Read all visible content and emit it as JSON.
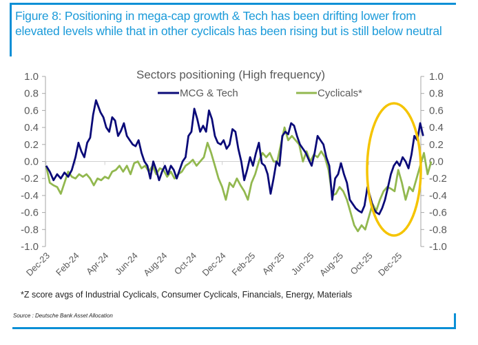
{
  "figure": {
    "title": "Figure 8: Positioning in mega-cap growth & Tech has been drifting lower from elevated levels while that in other cyclicals has been rising but is still below neutral",
    "footnote": "*Z score avgs of Industrial Cyclicals, Consumer Cyclicals, Financials, Energy, Materials",
    "source": "Source : Deutsche Bank Asset Allocation",
    "accent_color": "#0a8fd6",
    "highlight_color": "#f5c400"
  },
  "chart_data": {
    "type": "line",
    "title": "Sectors positioning (High frequency)",
    "xlabel": "",
    "ylabel": "",
    "ylim": [
      -1.0,
      1.0
    ],
    "yticks": [
      "1.0",
      "0.8",
      "0.6",
      "0.4",
      "0.2",
      "0.0",
      "-0.2",
      "-0.4",
      "-0.6",
      "-0.8",
      "-1.0"
    ],
    "ytick_values": [
      1.0,
      0.8,
      0.6,
      0.4,
      0.2,
      0.0,
      -0.2,
      -0.4,
      -0.6,
      -0.8,
      -1.0
    ],
    "secondary_yticks": [
      "1.0",
      "0.8",
      "0.6",
      "0.4",
      "0.2",
      "0.0",
      "-0.2",
      "-0.4",
      "-0.6",
      "-0.8",
      "-1.0"
    ],
    "xticks": [
      "Dec-23",
      "Feb-24",
      "Apr-24",
      "Jun-24",
      "Aug-24",
      "Oct-24",
      "Dec-24",
      "Feb-25",
      "Apr-25",
      "Jun-25",
      "Aug-25",
      "Oct-25",
      "Dec-25"
    ],
    "x_unit": "months since Dec-23",
    "xlim": [
      0,
      26.5
    ],
    "grid": "zero line only",
    "legend_position": "top",
    "annotation": "yellow ellipse highlighting Oct-25 to Dec-25",
    "series": [
      {
        "name": "MCG & Tech",
        "color": "#0a0a78",
        "points": [
          [
            0.0,
            -0.05
          ],
          [
            0.25,
            -0.12
          ],
          [
            0.5,
            -0.22
          ],
          [
            0.75,
            -0.15
          ],
          [
            1.0,
            -0.2
          ],
          [
            1.25,
            -0.13
          ],
          [
            1.5,
            -0.18
          ],
          [
            1.75,
            -0.1
          ],
          [
            2.0,
            0.05
          ],
          [
            2.2,
            0.22
          ],
          [
            2.4,
            0.12
          ],
          [
            2.6,
            0.05
          ],
          [
            2.8,
            0.22
          ],
          [
            3.0,
            0.28
          ],
          [
            3.2,
            0.55
          ],
          [
            3.4,
            0.72
          ],
          [
            3.55,
            0.65
          ],
          [
            3.7,
            0.58
          ],
          [
            3.9,
            0.52
          ],
          [
            4.1,
            0.4
          ],
          [
            4.3,
            0.35
          ],
          [
            4.5,
            0.52
          ],
          [
            4.7,
            0.48
          ],
          [
            4.9,
            0.3
          ],
          [
            5.1,
            0.36
          ],
          [
            5.3,
            0.45
          ],
          [
            5.5,
            0.3
          ],
          [
            5.7,
            0.25
          ],
          [
            5.9,
            0.2
          ],
          [
            6.1,
            0.18
          ],
          [
            6.3,
            0.25
          ],
          [
            6.5,
            0.1
          ],
          [
            6.7,
            0.0
          ],
          [
            6.9,
            -0.05
          ],
          [
            7.1,
            -0.2
          ],
          [
            7.3,
            0.0
          ],
          [
            7.5,
            -0.1
          ],
          [
            7.7,
            -0.22
          ],
          [
            7.9,
            -0.12
          ],
          [
            8.1,
            -0.05
          ],
          [
            8.3,
            -0.15
          ],
          [
            8.5,
            -0.05
          ],
          [
            8.7,
            -0.1
          ],
          [
            8.9,
            -0.2
          ],
          [
            9.1,
            -0.1
          ],
          [
            9.3,
            0.0
          ],
          [
            9.5,
            0.05
          ],
          [
            9.7,
            0.3
          ],
          [
            9.9,
            0.35
          ],
          [
            10.1,
            0.62
          ],
          [
            10.3,
            0.5
          ],
          [
            10.5,
            0.35
          ],
          [
            10.7,
            0.42
          ],
          [
            10.9,
            0.35
          ],
          [
            11.1,
            0.6
          ],
          [
            11.3,
            0.5
          ],
          [
            11.5,
            0.3
          ],
          [
            11.7,
            0.22
          ],
          [
            11.9,
            0.2
          ],
          [
            12.1,
            0.25
          ],
          [
            12.3,
            0.15
          ],
          [
            12.5,
            0.2
          ],
          [
            12.7,
            0.38
          ],
          [
            12.9,
            0.35
          ],
          [
            13.1,
            0.15
          ],
          [
            13.3,
            0.0
          ],
          [
            13.5,
            -0.22
          ],
          [
            13.7,
            -0.1
          ],
          [
            13.9,
            0.05
          ],
          [
            14.1,
            -0.05
          ],
          [
            14.3,
            0.1
          ],
          [
            14.5,
            0.22
          ],
          [
            14.7,
            -0.02
          ],
          [
            14.9,
            -0.05
          ],
          [
            15.1,
            -0.15
          ],
          [
            15.3,
            -0.38
          ],
          [
            15.5,
            -0.2
          ],
          [
            15.7,
            0.0
          ],
          [
            15.9,
            -0.05
          ],
          [
            16.1,
            0.3
          ],
          [
            16.3,
            0.35
          ],
          [
            16.5,
            0.32
          ],
          [
            16.7,
            0.45
          ],
          [
            16.9,
            0.42
          ],
          [
            17.1,
            0.3
          ],
          [
            17.3,
            0.2
          ],
          [
            17.5,
            0.15
          ],
          [
            17.7,
            0.1
          ],
          [
            17.9,
            0.02
          ],
          [
            18.1,
            -0.05
          ],
          [
            18.3,
            0.1
          ],
          [
            18.5,
            0.3
          ],
          [
            18.7,
            0.25
          ],
          [
            18.9,
            0.2
          ],
          [
            19.1,
            0.05
          ],
          [
            19.3,
            -0.05
          ],
          [
            19.5,
            -0.45
          ],
          [
            19.7,
            -0.2
          ],
          [
            19.9,
            -0.15
          ],
          [
            20.1,
            -0.02
          ],
          [
            20.3,
            -0.15
          ],
          [
            20.5,
            -0.25
          ],
          [
            20.7,
            -0.45
          ],
          [
            20.9,
            -0.5
          ],
          [
            21.1,
            -0.55
          ],
          [
            21.3,
            -0.58
          ],
          [
            21.5,
            -0.6
          ],
          [
            21.7,
            -0.52
          ],
          [
            21.9,
            -0.3
          ],
          [
            22.1,
            -0.42
          ],
          [
            22.3,
            -0.55
          ],
          [
            22.5,
            -0.6
          ],
          [
            22.7,
            -0.62
          ],
          [
            22.9,
            -0.55
          ],
          [
            23.1,
            -0.45
          ],
          [
            23.3,
            -0.3
          ],
          [
            23.5,
            -0.15
          ],
          [
            23.7,
            -0.05
          ],
          [
            23.9,
            0.0
          ],
          [
            24.1,
            -0.05
          ],
          [
            24.3,
            0.05
          ],
          [
            24.5,
            0.0
          ],
          [
            24.7,
            -0.08
          ],
          [
            24.9,
            0.08
          ],
          [
            25.1,
            0.3
          ],
          [
            25.3,
            0.25
          ],
          [
            25.5,
            0.45
          ],
          [
            25.7,
            0.3
          ]
        ]
      },
      {
        "name": "Cyclicals*",
        "color": "#92b84f",
        "points": [
          [
            0.0,
            -0.05
          ],
          [
            0.25,
            -0.25
          ],
          [
            0.5,
            -0.28
          ],
          [
            0.75,
            -0.3
          ],
          [
            1.0,
            -0.38
          ],
          [
            1.25,
            -0.25
          ],
          [
            1.5,
            -0.12
          ],
          [
            1.75,
            -0.18
          ],
          [
            2.0,
            -0.2
          ],
          [
            2.25,
            -0.15
          ],
          [
            2.5,
            -0.18
          ],
          [
            2.75,
            -0.15
          ],
          [
            3.0,
            -0.2
          ],
          [
            3.25,
            -0.28
          ],
          [
            3.5,
            -0.2
          ],
          [
            3.75,
            -0.22
          ],
          [
            4.0,
            -0.18
          ],
          [
            4.25,
            -0.2
          ],
          [
            4.5,
            -0.12
          ],
          [
            4.75,
            -0.1
          ],
          [
            5.0,
            -0.05
          ],
          [
            5.25,
            -0.12
          ],
          [
            5.5,
            -0.05
          ],
          [
            5.75,
            -0.15
          ],
          [
            6.0,
            -0.02
          ],
          [
            6.25,
            0.0
          ],
          [
            6.5,
            -0.08
          ],
          [
            6.75,
            -0.05
          ],
          [
            7.0,
            -0.12
          ],
          [
            7.25,
            -0.05
          ],
          [
            7.5,
            -0.15
          ],
          [
            7.75,
            -0.08
          ],
          [
            8.0,
            -0.1
          ],
          [
            8.25,
            -0.18
          ],
          [
            8.5,
            -0.12
          ],
          [
            8.75,
            -0.2
          ],
          [
            9.0,
            -0.15
          ],
          [
            9.25,
            -0.12
          ],
          [
            9.5,
            -0.05
          ],
          [
            9.75,
            -0.02
          ],
          [
            10.0,
            0.02
          ],
          [
            10.25,
            -0.05
          ],
          [
            10.5,
            0.0
          ],
          [
            10.75,
            0.05
          ],
          [
            11.0,
            0.22
          ],
          [
            11.25,
            0.1
          ],
          [
            11.5,
            -0.05
          ],
          [
            11.75,
            -0.2
          ],
          [
            12.0,
            -0.3
          ],
          [
            12.25,
            -0.45
          ],
          [
            12.5,
            -0.25
          ],
          [
            12.75,
            -0.3
          ],
          [
            13.0,
            -0.2
          ],
          [
            13.25,
            -0.28
          ],
          [
            13.5,
            -0.35
          ],
          [
            13.75,
            -0.45
          ],
          [
            14.0,
            -0.25
          ],
          [
            14.25,
            -0.15
          ],
          [
            14.5,
            0.0
          ],
          [
            14.75,
            0.1
          ],
          [
            15.0,
            0.05
          ],
          [
            15.25,
            0.1
          ],
          [
            15.5,
            0.0
          ],
          [
            15.75,
            0.0
          ],
          [
            16.0,
            0.2
          ],
          [
            16.25,
            0.4
          ],
          [
            16.5,
            0.25
          ],
          [
            16.75,
            0.3
          ],
          [
            17.0,
            0.25
          ],
          [
            17.25,
            0.2
          ],
          [
            17.5,
            0.0
          ],
          [
            17.75,
            0.12
          ],
          [
            18.0,
            0.0
          ],
          [
            18.25,
            0.08
          ],
          [
            18.5,
            0.05
          ],
          [
            18.75,
            0.12
          ],
          [
            19.0,
            0.05
          ],
          [
            19.25,
            -0.1
          ],
          [
            19.5,
            -0.4
          ],
          [
            19.75,
            -0.38
          ],
          [
            20.0,
            -0.3
          ],
          [
            20.25,
            -0.35
          ],
          [
            20.5,
            -0.45
          ],
          [
            20.75,
            -0.6
          ],
          [
            21.0,
            -0.75
          ],
          [
            21.25,
            -0.82
          ],
          [
            21.5,
            -0.75
          ],
          [
            21.75,
            -0.8
          ],
          [
            22.0,
            -0.65
          ],
          [
            22.25,
            -0.5
          ],
          [
            22.5,
            -0.58
          ],
          [
            22.75,
            -0.45
          ],
          [
            23.0,
            -0.35
          ],
          [
            23.25,
            -0.3
          ],
          [
            23.5,
            -0.32
          ],
          [
            23.75,
            -0.35
          ],
          [
            24.0,
            -0.1
          ],
          [
            24.25,
            -0.25
          ],
          [
            24.5,
            -0.45
          ],
          [
            24.75,
            -0.3
          ],
          [
            25.0,
            -0.35
          ],
          [
            25.25,
            -0.2
          ],
          [
            25.5,
            -0.05
          ],
          [
            25.75,
            0.1
          ],
          [
            26.0,
            -0.15
          ],
          [
            26.25,
            0.0
          ]
        ]
      }
    ]
  }
}
